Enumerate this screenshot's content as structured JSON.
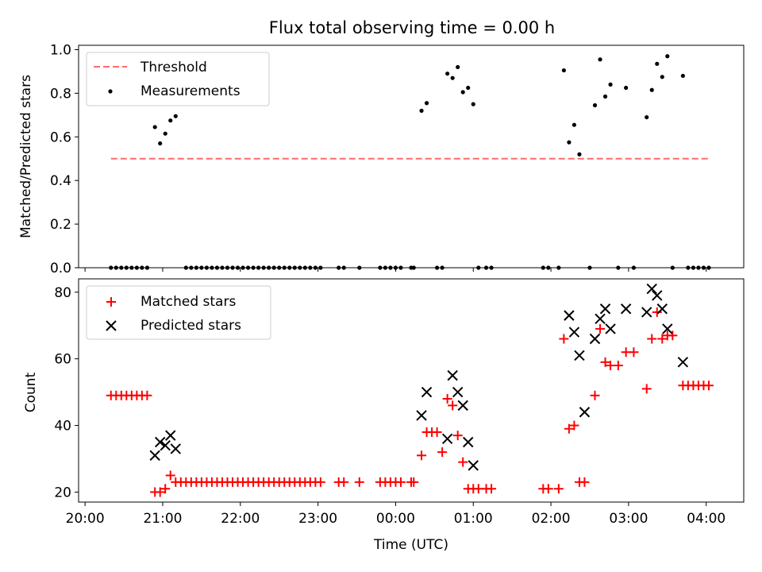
{
  "figure": {
    "title": "Flux total observing time = 0.00 h",
    "xlabel": "Time (UTC)"
  },
  "chart_data": [
    {
      "type": "scatter",
      "ylabel": "Matched/Predicted stars",
      "xlim": [
        "19:55",
        "04:29"
      ],
      "ylim": [
        0.0,
        1.02
      ],
      "yticks": [
        "0.0",
        "0.2",
        "0.4",
        "0.6",
        "0.8",
        "1.0"
      ],
      "legend_position": "top-left",
      "threshold": {
        "name": "Threshold",
        "color": "#ff6b6b",
        "value": 0.5,
        "x_range": [
          "20:20",
          "04:02"
        ]
      },
      "series": [
        {
          "name": "Measurements",
          "color": "#000000",
          "marker": "dot",
          "x": [
            "20:20",
            "20:24",
            "20:28",
            "20:32",
            "20:36",
            "20:40",
            "20:44",
            "20:48",
            "20:54",
            "20:58",
            "21:02",
            "21:06",
            "21:10",
            "21:18",
            "21:22",
            "21:26",
            "21:30",
            "21:34",
            "21:38",
            "21:42",
            "21:46",
            "21:50",
            "21:54",
            "21:58",
            "22:02",
            "22:06",
            "22:10",
            "22:14",
            "22:18",
            "22:22",
            "22:26",
            "22:30",
            "22:34",
            "22:38",
            "22:42",
            "22:46",
            "22:50",
            "22:54",
            "22:58",
            "23:02",
            "23:16",
            "23:20",
            "23:32",
            "23:48",
            "23:52",
            "23:56",
            "24:00",
            "24:04",
            "24:12",
            "24:14",
            "24:20",
            "24:24",
            "24:32",
            "24:36",
            "24:40",
            "24:44",
            "24:48",
            "24:52",
            "24:56",
            "25:00",
            "25:04",
            "25:10",
            "25:14",
            "25:54",
            "25:58",
            "26:06",
            "26:10",
            "26:14",
            "26:18",
            "26:22",
            "26:30",
            "26:34",
            "26:38",
            "26:42",
            "26:46",
            "26:52",
            "26:58",
            "27:04",
            "27:14",
            "27:18",
            "27:22",
            "27:26",
            "27:30",
            "27:34",
            "27:42",
            "27:46",
            "27:50",
            "27:54",
            "27:58",
            "28:02"
          ],
          "y": [
            0,
            0,
            0,
            0,
            0,
            0,
            0,
            0,
            0.645,
            0.57,
            0.615,
            0.675,
            0.695,
            0,
            0,
            0,
            0,
            0,
            0,
            0,
            0,
            0,
            0,
            0,
            0,
            0,
            0,
            0,
            0,
            0,
            0,
            0,
            0,
            0,
            0,
            0,
            0,
            0,
            0,
            0,
            0,
            0,
            0,
            0,
            0,
            0,
            0,
            0,
            0,
            0,
            0.72,
            0.755,
            0,
            0,
            0.89,
            0.87,
            0.92,
            0.805,
            0.825,
            0.75,
            0,
            0,
            0,
            0,
            0,
            0,
            0.905,
            0.575,
            0.655,
            0.52,
            0,
            0.745,
            0.955,
            0.785,
            0.84,
            0,
            0.825,
            0,
            0.69,
            0.815,
            0.935,
            0.875,
            0.97,
            0,
            0.88,
            0,
            0,
            0,
            0,
            0
          ]
        }
      ]
    },
    {
      "type": "scatter",
      "ylabel": "Count",
      "xlim": [
        "19:55",
        "04:29"
      ],
      "ylim": [
        17,
        84
      ],
      "yticks": [
        "20",
        "40",
        "60",
        "80"
      ],
      "xticks": [
        "20:00",
        "21:00",
        "22:00",
        "23:00",
        "00:00",
        "01:00",
        "02:00",
        "03:00",
        "04:00"
      ],
      "legend_position": "top-left",
      "series": [
        {
          "name": "Matched stars",
          "color": "#ff0000",
          "marker": "plus",
          "x": [
            "20:20",
            "20:24",
            "20:28",
            "20:32",
            "20:36",
            "20:40",
            "20:44",
            "20:48",
            "20:54",
            "20:58",
            "21:02",
            "21:06",
            "21:10",
            "21:14",
            "21:18",
            "21:22",
            "21:26",
            "21:30",
            "21:34",
            "21:38",
            "21:42",
            "21:46",
            "21:50",
            "21:54",
            "21:58",
            "22:02",
            "22:06",
            "22:10",
            "22:14",
            "22:18",
            "22:22",
            "22:26",
            "22:30",
            "22:34",
            "22:38",
            "22:42",
            "22:46",
            "22:50",
            "22:54",
            "22:58",
            "23:02",
            "23:16",
            "23:20",
            "23:32",
            "23:48",
            "23:52",
            "23:56",
            "24:00",
            "24:04",
            "24:12",
            "24:14",
            "24:20",
            "24:24",
            "24:28",
            "24:32",
            "24:36",
            "24:40",
            "24:44",
            "24:48",
            "24:52",
            "24:56",
            "25:00",
            "25:04",
            "25:10",
            "25:14",
            "25:54",
            "25:58",
            "26:06",
            "26:10",
            "26:14",
            "26:18",
            "26:22",
            "26:26",
            "26:34",
            "26:38",
            "26:42",
            "26:46",
            "26:52",
            "26:58",
            "27:04",
            "27:14",
            "27:18",
            "27:22",
            "27:26",
            "27:30",
            "27:34",
            "27:42",
            "27:46",
            "27:50",
            "27:54",
            "27:58",
            "28:02"
          ],
          "y": [
            49,
            49,
            49,
            49,
            49,
            49,
            49,
            49,
            20,
            20,
            21,
            25,
            23,
            23,
            23,
            23,
            23,
            23,
            23,
            23,
            23,
            23,
            23,
            23,
            23,
            23,
            23,
            23,
            23,
            23,
            23,
            23,
            23,
            23,
            23,
            23,
            23,
            23,
            23,
            23,
            23,
            23,
            23,
            23,
            23,
            23,
            23,
            23,
            23,
            23,
            23,
            31,
            38,
            38,
            38,
            32,
            48,
            46,
            37,
            29,
            21,
            21,
            21,
            21,
            21,
            21,
            21,
            21,
            66,
            39,
            40,
            23,
            23,
            49,
            69,
            59,
            58,
            58,
            62,
            62,
            51,
            66,
            74,
            66,
            67,
            67,
            52,
            52,
            52,
            52,
            52,
            52
          ]
        },
        {
          "name": "Predicted stars",
          "color": "#000000",
          "marker": "x",
          "x": [
            "20:54",
            "20:58",
            "21:02",
            "21:06",
            "21:10",
            "24:20",
            "24:24",
            "24:40",
            "24:44",
            "24:48",
            "24:52",
            "24:56",
            "25:00",
            "26:14",
            "26:18",
            "26:22",
            "26:26",
            "26:34",
            "26:38",
            "26:42",
            "26:46",
            "26:58",
            "27:14",
            "27:18",
            "27:22",
            "27:26",
            "27:30",
            "27:42"
          ],
          "y": [
            31,
            35,
            34,
            37,
            33,
            43,
            50,
            36,
            55,
            50,
            46,
            35,
            28,
            73,
            68,
            61,
            44,
            66,
            72,
            75,
            69,
            75,
            74,
            81,
            79,
            75,
            69,
            59
          ]
        }
      ]
    }
  ]
}
